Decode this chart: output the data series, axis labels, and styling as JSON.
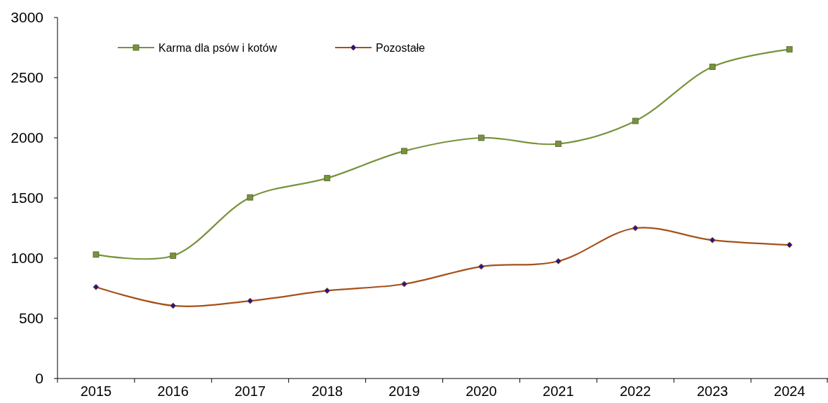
{
  "chart_data": {
    "type": "line",
    "categories": [
      "2015",
      "2016",
      "2017",
      "2018",
      "2019",
      "2020",
      "2021",
      "2022",
      "2023",
      "2024"
    ],
    "series": [
      {
        "name": "Karma dla psów i kotów",
        "color": "#77933c",
        "marker": "square",
        "values": [
          1030,
          1020,
          1505,
          1665,
          1890,
          2000,
          1950,
          2140,
          2590,
          2735
        ]
      },
      {
        "name": "Pozostałe",
        "color": "#a5501a",
        "marker": "diamond",
        "values": [
          760,
          605,
          645,
          730,
          785,
          930,
          975,
          1250,
          1150,
          1110
        ]
      }
    ],
    "ylim": [
      0,
      3000
    ],
    "yticks": [
      0,
      500,
      1000,
      1500,
      2000,
      2500,
      3000
    ],
    "grid": false,
    "legend": "top"
  }
}
